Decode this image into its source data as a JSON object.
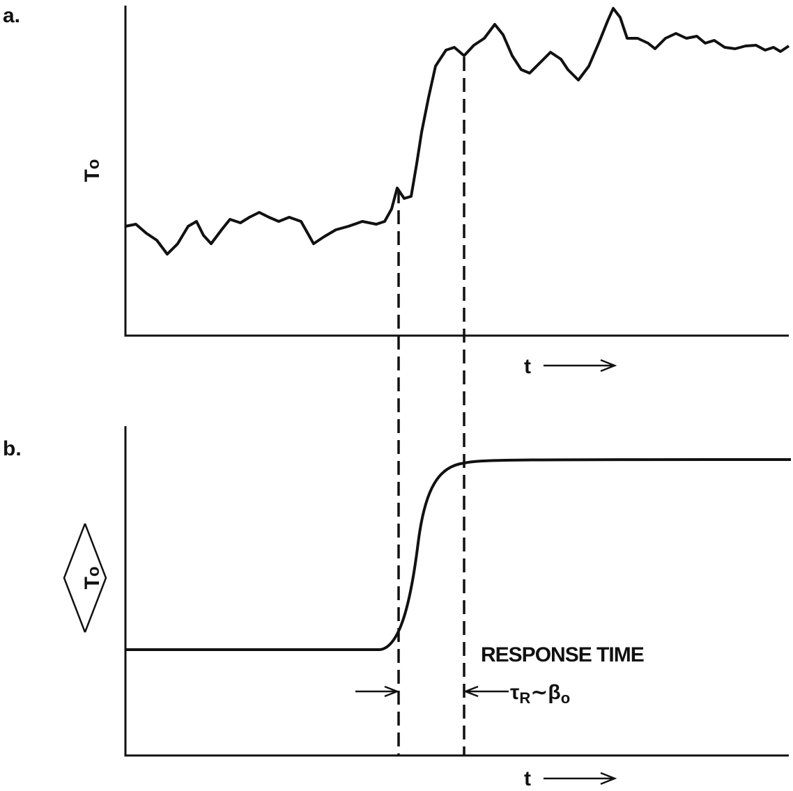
{
  "panels": [
    {
      "label": "a.",
      "y_label": "T",
      "y_label_sub": "o",
      "x_label": "t"
    },
    {
      "label": "b.",
      "y_label": "T",
      "y_label_sub": "o",
      "x_label": "t"
    }
  ],
  "annotation": {
    "title": "RESPONSE TIME",
    "tau": "τ",
    "tau_sub": "R",
    "relation": "∼β",
    "beta_sub": "o"
  }
}
